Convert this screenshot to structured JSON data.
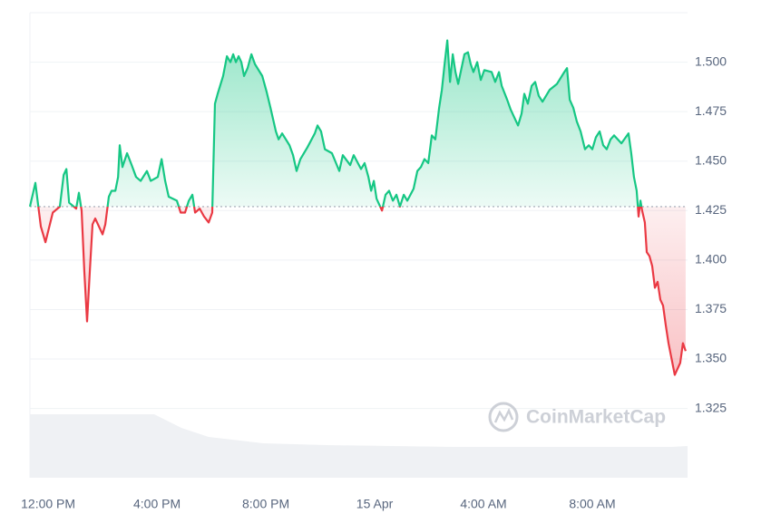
{
  "chart_data": {
    "type": "line",
    "watermark": "CoinMarketCap",
    "baseline": 1.427,
    "up_color": "#16c784",
    "down_color": "#ea3943",
    "xlim": [
      11.33,
      35.5
    ],
    "ylim": [
      1.29,
      1.525
    ],
    "xticks": [
      {
        "value": 12,
        "label": "12:00 PM"
      },
      {
        "value": 16,
        "label": "4:00 PM"
      },
      {
        "value": 20,
        "label": "8:00 PM"
      },
      {
        "value": 24,
        "label": "15 Apr"
      },
      {
        "value": 28,
        "label": "4:00 AM"
      },
      {
        "value": 32,
        "label": "8:00 AM"
      }
    ],
    "yticks": [
      1.325,
      {
        "value": 1.35,
        "label": "1.350"
      },
      1.375,
      {
        "value": 1.4,
        "label": "1.400"
      },
      1.425,
      {
        "value": 1.45,
        "label": "1.450"
      },
      1.475,
      {
        "value": 1.5,
        "label": "1.500"
      }
    ],
    "grid": true,
    "x": [
      11.33,
      11.53,
      11.73,
      11.9,
      12.17,
      12.43,
      12.57,
      12.67,
      12.77,
      13.03,
      13.13,
      13.23,
      13.33,
      13.43,
      13.53,
      13.63,
      13.73,
      14.0,
      14.1,
      14.23,
      14.33,
      14.47,
      14.57,
      14.63,
      14.73,
      14.9,
      15.07,
      15.23,
      15.4,
      15.63,
      15.77,
      16.03,
      16.17,
      16.3,
      16.43,
      16.73,
      16.87,
      17.03,
      17.17,
      17.3,
      17.4,
      17.57,
      17.73,
      17.9,
      18.03,
      18.13,
      18.23,
      18.43,
      18.57,
      18.7,
      18.8,
      18.9,
      19.0,
      19.1,
      19.2,
      19.33,
      19.47,
      19.6,
      19.87,
      20.03,
      20.17,
      20.37,
      20.47,
      20.6,
      20.87,
      21.0,
      21.13,
      21.27,
      21.53,
      21.8,
      21.9,
      22.03,
      22.17,
      22.43,
      22.7,
      22.83,
      23.1,
      23.23,
      23.5,
      23.63,
      23.77,
      23.87,
      23.97,
      24.07,
      24.27,
      24.4,
      24.53,
      24.67,
      24.8,
      24.93,
      25.07,
      25.2,
      25.43,
      25.57,
      25.7,
      25.83,
      25.97,
      26.1,
      26.23,
      26.37,
      26.47,
      26.57,
      26.67,
      26.77,
      26.87,
      26.97,
      27.07,
      27.3,
      27.43,
      27.53,
      27.63,
      27.77,
      27.9,
      28.03,
      28.3,
      28.43,
      28.57,
      28.67,
      28.87,
      29.0,
      29.27,
      29.4,
      29.5,
      29.63,
      29.77,
      29.9,
      30.03,
      30.17,
      30.43,
      30.7,
      30.97,
      31.07,
      31.17,
      31.3,
      31.43,
      31.57,
      31.73,
      31.87,
      32.0,
      32.13,
      32.27,
      32.4,
      32.53,
      32.67,
      32.8,
      33.07,
      33.33,
      33.43,
      33.53,
      33.63,
      33.7,
      33.77,
      33.83,
      33.93,
      34.0,
      34.1,
      34.2,
      34.3,
      34.4,
      34.5,
      34.6,
      34.7,
      34.8,
      34.9,
      35.03,
      35.13,
      35.23,
      35.33,
      35.43
    ],
    "values": [
      1.427,
      1.439,
      1.417,
      1.409,
      1.424,
      1.427,
      1.443,
      1.446,
      1.429,
      1.426,
      1.434,
      1.425,
      1.394,
      1.369,
      1.394,
      1.418,
      1.421,
      1.413,
      1.418,
      1.432,
      1.435,
      1.435,
      1.442,
      1.458,
      1.447,
      1.454,
      1.448,
      1.442,
      1.44,
      1.445,
      1.44,
      1.442,
      1.451,
      1.44,
      1.432,
      1.43,
      1.424,
      1.424,
      1.43,
      1.433,
      1.424,
      1.426,
      1.422,
      1.419,
      1.424,
      1.479,
      1.484,
      1.493,
      1.503,
      1.5,
      1.504,
      1.5,
      1.503,
      1.5,
      1.493,
      1.497,
      1.504,
      1.499,
      1.493,
      1.485,
      1.477,
      1.465,
      1.461,
      1.464,
      1.458,
      1.453,
      1.445,
      1.451,
      1.457,
      1.464,
      1.468,
      1.465,
      1.456,
      1.454,
      1.445,
      1.453,
      1.448,
      1.453,
      1.446,
      1.449,
      1.442,
      1.435,
      1.44,
      1.431,
      1.425,
      1.433,
      1.435,
      1.43,
      1.433,
      1.427,
      1.433,
      1.43,
      1.436,
      1.445,
      1.447,
      1.451,
      1.449,
      1.463,
      1.461,
      1.477,
      1.486,
      1.499,
      1.511,
      1.49,
      1.504,
      1.495,
      1.489,
      1.504,
      1.505,
      1.499,
      1.495,
      1.5,
      1.491,
      1.496,
      1.495,
      1.49,
      1.495,
      1.488,
      1.481,
      1.476,
      1.468,
      1.474,
      1.484,
      1.479,
      1.488,
      1.49,
      1.483,
      1.48,
      1.486,
      1.489,
      1.495,
      1.497,
      1.481,
      1.477,
      1.47,
      1.465,
      1.456,
      1.458,
      1.456,
      1.462,
      1.465,
      1.458,
      1.456,
      1.461,
      1.463,
      1.459,
      1.464,
      1.454,
      1.442,
      1.435,
      1.422,
      1.43,
      1.425,
      1.419,
      1.404,
      1.402,
      1.397,
      1.386,
      1.389,
      1.38,
      1.377,
      1.367,
      1.358,
      1.351,
      1.342,
      1.345,
      1.348,
      1.358,
      1.354
    ]
  }
}
